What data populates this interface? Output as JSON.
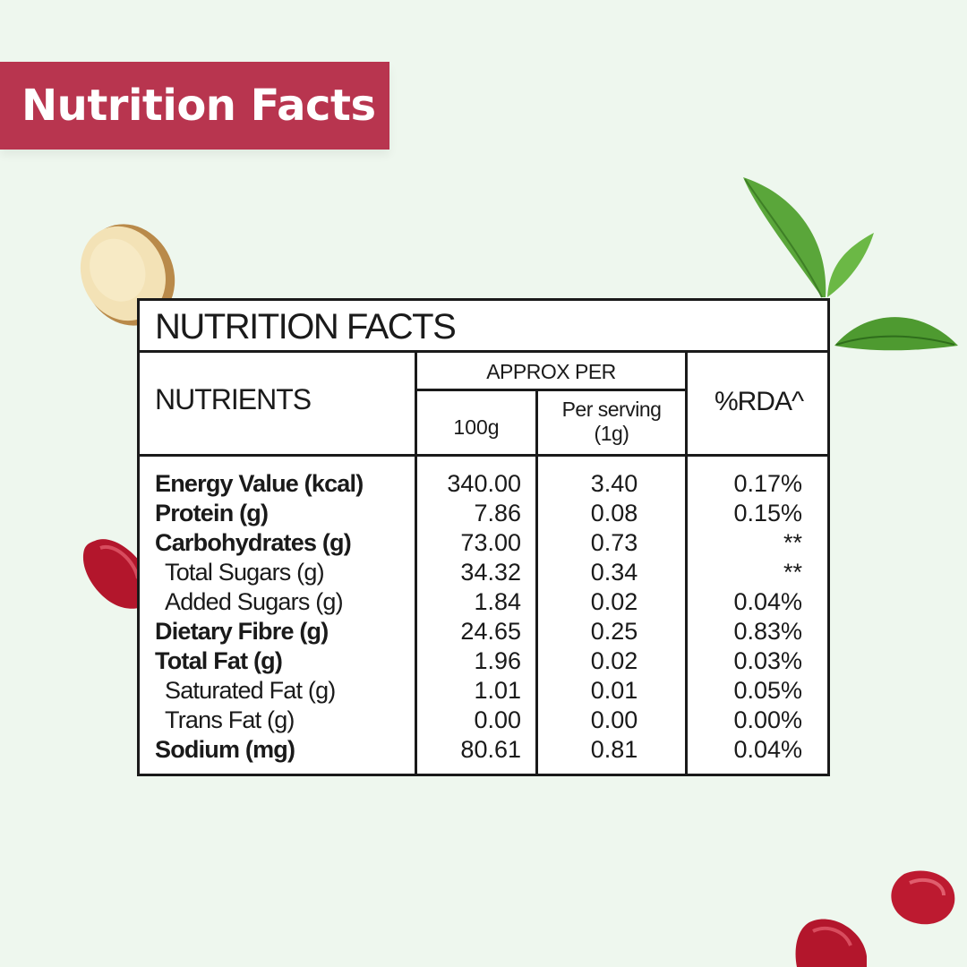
{
  "banner": {
    "title": "Nutrition Facts"
  },
  "table": {
    "title": "NUTRITION FACTS",
    "headers": {
      "nutrients": "NUTRIENTS",
      "approx_per": "APPROX PER",
      "per_100g": "100g",
      "per_serving": "Per serving",
      "serving_size": "(1g)",
      "rda": "%RDA^"
    },
    "rows": [
      {
        "name": "Energy Value (kcal)",
        "per_100g": "340.00",
        "per_serving": "3.40",
        "rda": "0.17%"
      },
      {
        "name": "Protein (g)",
        "per_100g": "7.86",
        "per_serving": "0.08",
        "rda": "0.15%"
      },
      {
        "name": "Carbohydrates (g)",
        "per_100g": "73.00",
        "per_serving": "0.73",
        "rda": "**"
      },
      {
        "name": "Total Sugars (g)",
        "per_100g": "34.32",
        "per_serving": "0.34",
        "rda": "**"
      },
      {
        "name": "Added Sugars (g)",
        "per_100g": "1.84",
        "per_serving": "0.02",
        "rda": "0.04%"
      },
      {
        "name": "Dietary Fibre (g)",
        "per_100g": "24.65",
        "per_serving": "0.25",
        "rda": "0.83%"
      },
      {
        "name": "Total Fat (g)",
        "per_100g": "1.96",
        "per_serving": "0.02",
        "rda": "0.03%"
      },
      {
        "name": "Saturated Fat (g)",
        "per_100g": "1.01",
        "per_serving": "0.01",
        "rda": "0.05%"
      },
      {
        "name": "Trans Fat (g)",
        "per_100g": "0.00",
        "per_serving": "0.00",
        "rda": "0.00%"
      },
      {
        "name": "Sodium (mg)",
        "per_100g": "80.61",
        "per_serving": "0.81",
        "rda": "0.04%"
      }
    ]
  },
  "decorations": [
    "ginger-slice",
    "tea-leaves",
    "pomegranate-seed"
  ],
  "colors": {
    "background": "#eef7ee",
    "banner": "#b8354f",
    "text": "#1a1a1a"
  }
}
